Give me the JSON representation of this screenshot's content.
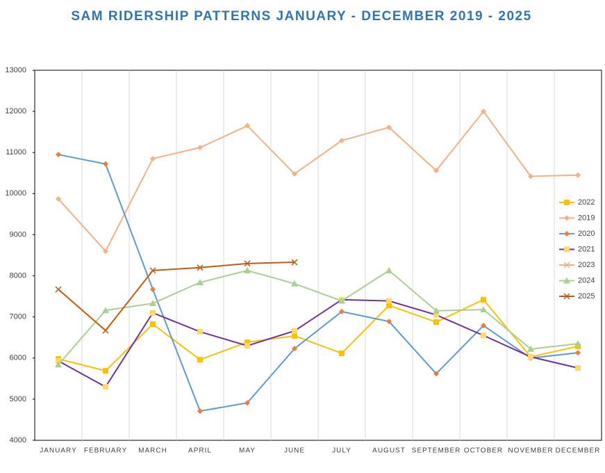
{
  "chart_data": {
    "type": "line",
    "title": "SAM RIDERSHIP PATTERNS JANUARY - DECEMBER 2019 - 2025",
    "categories": [
      "JANUARY",
      "FEBRUARY",
      "MARCH",
      "APRIL",
      "MAY",
      "JUNE",
      "JULY",
      "AUGUST",
      "SEPTEMBER",
      "OCTOBER",
      "NOVEMBER",
      "DECEMBER"
    ],
    "ylim": [
      4000,
      13000
    ],
    "yticks": [
      4000,
      5000,
      6000,
      7000,
      8000,
      9000,
      10000,
      11000,
      12000,
      13000
    ],
    "grid": "vertical",
    "legend": "right",
    "series": [
      {
        "name": "2022",
        "color": "#FFC000",
        "marker_color": "#FFC000",
        "marker": "square",
        "values": [
          5980,
          5690,
          6825,
          5960,
          6385,
          6540,
          6115,
          7280,
          6875,
          7420,
          6030,
          6285
        ]
      },
      {
        "name": "2019",
        "color": "#F4B183",
        "marker_color": "#F4B183",
        "marker": "diamond",
        "values": [
          9870,
          8600,
          10850,
          11120,
          11650,
          10480,
          11290,
          11610,
          10560,
          12000,
          10420,
          10450
        ]
      },
      {
        "name": "2020",
        "color": "#5B9BD5",
        "marker_color": "#ED7D31",
        "marker": "diamond",
        "values": [
          10950,
          10720,
          7670,
          4710,
          4910,
          6230,
          7130,
          6890,
          5620,
          6790,
          6000,
          6130
        ]
      },
      {
        "name": "2021",
        "color": "#7030A0",
        "marker_color": "#FFD966",
        "marker": "square",
        "values": [
          5930,
          5300,
          7100,
          6640,
          6300,
          6660,
          7420,
          7390,
          7050,
          6550,
          6030,
          5760
        ]
      },
      {
        "name": "2023",
        "color": "#F4B183",
        "marker_color": "#F4B183",
        "marker": "x",
        "values": [
          null,
          null,
          null,
          null,
          null,
          null,
          null,
          null,
          null,
          null,
          null,
          null
        ]
      },
      {
        "name": "2024",
        "color": "#A9D18E",
        "marker_color": "#A9D18E",
        "marker": "triangle",
        "values": [
          5840,
          7160,
          7330,
          7840,
          8130,
          7810,
          7390,
          8130,
          7150,
          7180,
          6220,
          6350
        ]
      },
      {
        "name": "2025",
        "color": "#C55A11",
        "marker_color": "#C55A11",
        "marker": "x",
        "values": [
          7670,
          6670,
          8130,
          8200,
          8300,
          8330,
          null,
          null,
          null,
          null,
          null,
          null
        ]
      }
    ]
  }
}
